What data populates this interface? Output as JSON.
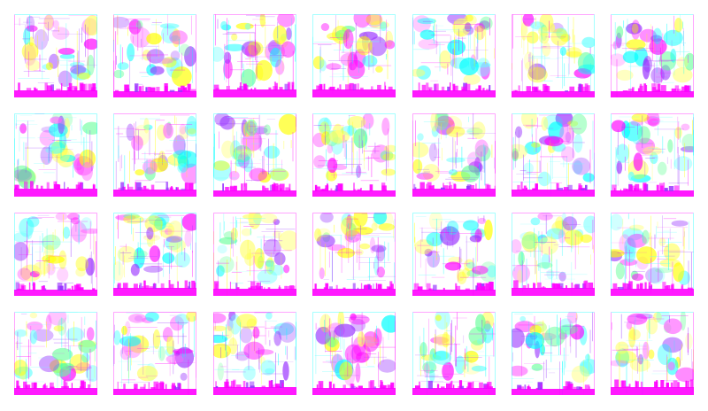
{
  "grid": {
    "rows": 4,
    "columns": 7,
    "tile_count": 28
  },
  "palette": {
    "magenta": "#ff00ff",
    "yellow": "#ffff00",
    "cyan": "#00ffff",
    "light_magenta": "#ff66ff",
    "light_yellow": "#ffff66",
    "light_cyan": "#66ffff",
    "violet": "#9933ff",
    "green": "#66ff99",
    "blue": "#3366ff",
    "background": "#ffffff"
  },
  "tiles": [
    {
      "name": "tile-1"
    },
    {
      "name": "tile-2"
    },
    {
      "name": "tile-3"
    },
    {
      "name": "tile-4"
    },
    {
      "name": "tile-5"
    },
    {
      "name": "tile-6"
    },
    {
      "name": "tile-7"
    },
    {
      "name": "tile-8"
    },
    {
      "name": "tile-9"
    },
    {
      "name": "tile-10"
    },
    {
      "name": "tile-11"
    },
    {
      "name": "tile-12"
    },
    {
      "name": "tile-13"
    },
    {
      "name": "tile-14"
    },
    {
      "name": "tile-15"
    },
    {
      "name": "tile-16"
    },
    {
      "name": "tile-17"
    },
    {
      "name": "tile-18"
    },
    {
      "name": "tile-19"
    },
    {
      "name": "tile-20"
    },
    {
      "name": "tile-21"
    },
    {
      "name": "tile-22"
    },
    {
      "name": "tile-23"
    },
    {
      "name": "tile-24"
    },
    {
      "name": "tile-25"
    },
    {
      "name": "tile-26"
    },
    {
      "name": "tile-27"
    },
    {
      "name": "tile-28"
    }
  ]
}
